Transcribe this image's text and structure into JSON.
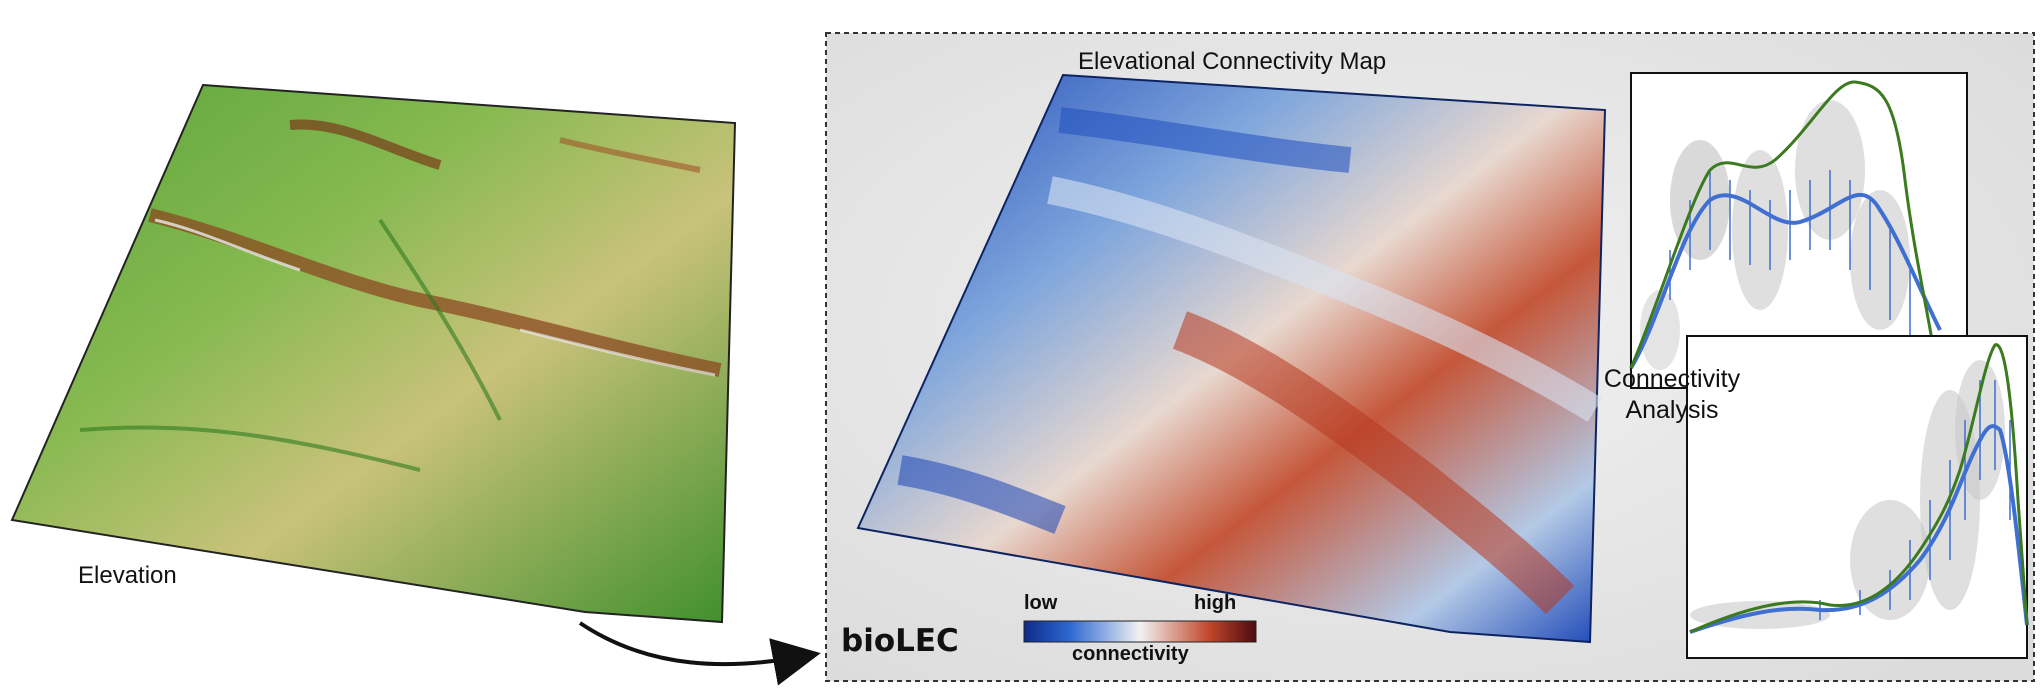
{
  "elevation_panel": {
    "label": "Elevation"
  },
  "connectivity_panel": {
    "title": "Elevational Connectivity Map",
    "brand": "bioLEC",
    "colorbar": {
      "low_label": "low",
      "high_label": "high",
      "caption": "connectivity"
    }
  },
  "analysis_panel": {
    "label_line1": "Connectivity",
    "label_line2": "Analysis"
  },
  "colors": {
    "terrain_green": "#3f8f2c",
    "terrain_yellow": "#d8c77a",
    "terrain_brown": "#8b4a22",
    "low_blue": "#1b46b6",
    "mid_white": "#eef0f2",
    "high_red": "#b7381f",
    "high_dark": "#5a0b12",
    "curve_green": "#3b7a1e",
    "curve_blue": "#3f6fd0",
    "scatter_gray": "#c9c9c9"
  }
}
